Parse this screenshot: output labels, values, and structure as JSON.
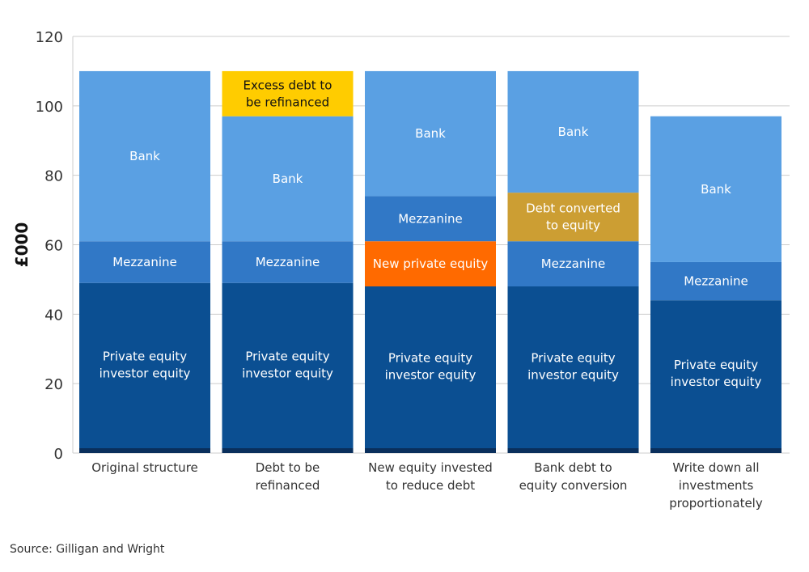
{
  "colors": {
    "pe": "#0b4f92",
    "mezz": "#3178c6",
    "bank": "#5aa0e3",
    "excess": "#ffcc00",
    "new_pe": "#ff6a00",
    "converted": "#cc9e33",
    "base": "#0a2f5c",
    "grid": "#cccccc"
  },
  "chart_data": {
    "type": "bar",
    "stacked": true,
    "ylabel": "£000",
    "ylim": [
      0,
      120
    ],
    "yticks": [
      0,
      20,
      40,
      60,
      80,
      100,
      120
    ],
    "grid": true,
    "categories": [
      [
        "Original structure"
      ],
      [
        "Debt to be",
        "refinanced"
      ],
      [
        "New equity invested",
        "to reduce debt"
      ],
      [
        "Bank debt to",
        "equity conversion"
      ],
      [
        "Write down all",
        "investments",
        "proportionately"
      ]
    ],
    "bars": [
      {
        "segments": [
          {
            "name": "pe",
            "value": 49,
            "label": [
              "Private equity",
              "investor equity"
            ]
          },
          {
            "name": "mezz",
            "value": 12,
            "label": [
              "Mezzanine"
            ]
          },
          {
            "name": "bank",
            "value": 49,
            "label": [
              "Bank"
            ]
          }
        ]
      },
      {
        "segments": [
          {
            "name": "pe",
            "value": 49,
            "label": [
              "Private equity",
              "investor equity"
            ]
          },
          {
            "name": "mezz",
            "value": 12,
            "label": [
              "Mezzanine"
            ]
          },
          {
            "name": "bank",
            "value": 36,
            "label": [
              "Bank"
            ]
          },
          {
            "name": "excess",
            "value": 13,
            "label": [
              "Excess debt to",
              "be refinanced"
            ]
          }
        ]
      },
      {
        "segments": [
          {
            "name": "pe",
            "value": 48,
            "label": [
              "Private equity",
              "investor equity"
            ]
          },
          {
            "name": "new_pe",
            "value": 13,
            "label": [
              "New private equity"
            ]
          },
          {
            "name": "mezz",
            "value": 13,
            "label": [
              "Mezzanine"
            ]
          },
          {
            "name": "bank",
            "value": 36,
            "label": [
              "Bank"
            ]
          }
        ]
      },
      {
        "segments": [
          {
            "name": "pe",
            "value": 48,
            "label": [
              "Private equity",
              "investor equity"
            ]
          },
          {
            "name": "mezz",
            "value": 13,
            "label": [
              "Mezzanine"
            ]
          },
          {
            "name": "converted",
            "value": 14,
            "label": [
              "Debt converted",
              "to equity"
            ]
          },
          {
            "name": "bank",
            "value": 35,
            "label": [
              "Bank"
            ]
          }
        ]
      },
      {
        "segments": [
          {
            "name": "pe",
            "value": 44,
            "label": [
              "Private equity",
              "investor equity"
            ]
          },
          {
            "name": "mezz",
            "value": 11,
            "label": [
              "Mezzanine"
            ]
          },
          {
            "name": "bank",
            "value": 42,
            "label": [
              "Bank"
            ]
          }
        ]
      }
    ]
  },
  "source": "Source: Gilligan and Wright"
}
